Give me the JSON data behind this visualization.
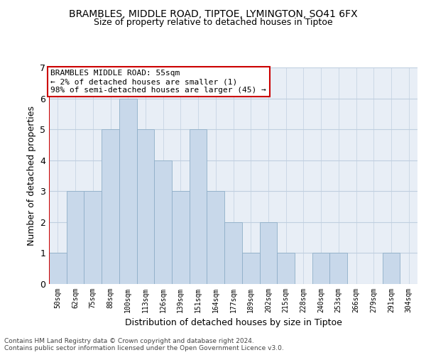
{
  "title1": "BRAMBLES, MIDDLE ROAD, TIPTOE, LYMINGTON, SO41 6FX",
  "title2": "Size of property relative to detached houses in Tiptoe",
  "xlabel": "Distribution of detached houses by size in Tiptoe",
  "ylabel": "Number of detached properties",
  "categories": [
    "50sqm",
    "62sqm",
    "75sqm",
    "88sqm",
    "100sqm",
    "113sqm",
    "126sqm",
    "139sqm",
    "151sqm",
    "164sqm",
    "177sqm",
    "189sqm",
    "202sqm",
    "215sqm",
    "228sqm",
    "240sqm",
    "253sqm",
    "266sqm",
    "279sqm",
    "291sqm",
    "304sqm"
  ],
  "values": [
    1,
    3,
    3,
    5,
    6,
    5,
    4,
    3,
    5,
    3,
    2,
    1,
    2,
    1,
    0,
    1,
    1,
    0,
    0,
    1,
    0
  ],
  "bar_color": "#c8d8ea",
  "bar_edge_color": "#8fafc8",
  "annotation_text": "BRAMBLES MIDDLE ROAD: 55sqm\n← 2% of detached houses are smaller (1)\n98% of semi-detached houses are larger (45) →",
  "annotation_box_color": "#ffffff",
  "annotation_border_color": "#cc0000",
  "grid_color": "#c0cfe0",
  "background_color": "#e8eef6",
  "footer": "Contains HM Land Registry data © Crown copyright and database right 2024.\nContains public sector information licensed under the Open Government Licence v3.0.",
  "ylim": [
    0,
    7
  ],
  "yticks": [
    0,
    1,
    2,
    3,
    4,
    5,
    6,
    7
  ]
}
